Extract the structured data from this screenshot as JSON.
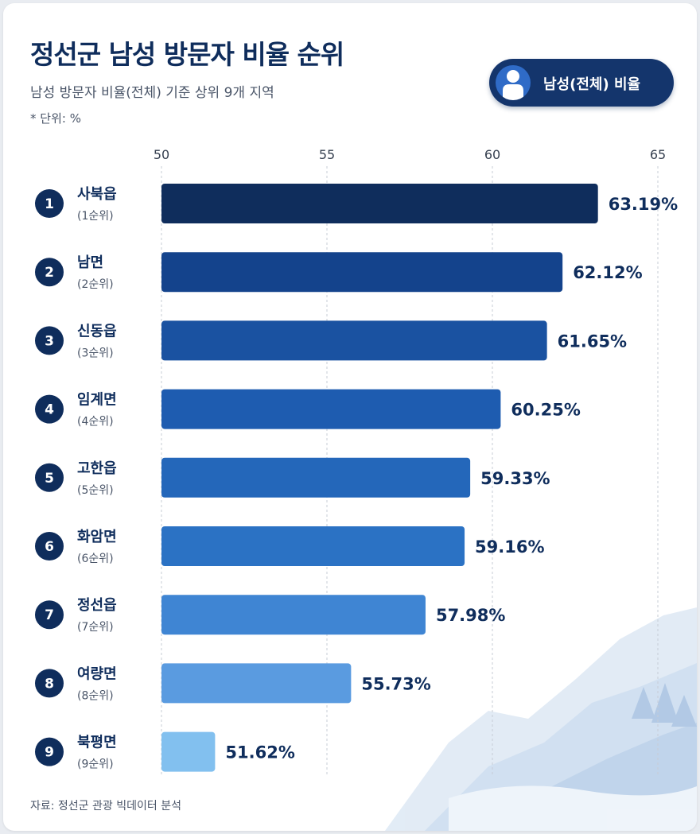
{
  "header": {
    "title": "정선군 남성 방문자 비율 순위",
    "subtitle": "남성 방문자 비율(전체) 기준 상위 9개 지역",
    "unit_note": "* 단위: %"
  },
  "badge": {
    "label": "남성(전체) 비율",
    "icon": "person-icon"
  },
  "footer": {
    "source": "자료: 정선군 관광 빅데이터 분석"
  },
  "chart_data": {
    "type": "bar",
    "orientation": "horizontal",
    "title": "정선군 남성 방문자 비율 순위",
    "subtitle": "남성 방문자 비율(전체) 기준 상위 9개 지역",
    "xlim": [
      50,
      65
    ],
    "ticks": [
      50,
      55,
      60,
      65
    ],
    "grid": true,
    "value_suffix": "%",
    "categories": [
      "사북읍",
      "남면",
      "신동읍",
      "임계면",
      "고한읍",
      "화암면",
      "정선읍",
      "여량면",
      "북평면"
    ],
    "rank_labels": [
      "(1순위)",
      "(2순위)",
      "(3순위)",
      "(4순위)",
      "(5순위)",
      "(6순위)",
      "(7순위)",
      "(8순위)",
      "(9순위)"
    ],
    "values": [
      63.19,
      62.12,
      61.65,
      60.25,
      59.33,
      59.16,
      57.98,
      55.73,
      51.62
    ],
    "colors": [
      "#0f2d5c",
      "#14438c",
      "#1a52a1",
      "#1e5cb0",
      "#2467ba",
      "#2b72c4",
      "#3f85d3",
      "#5a9be0",
      "#82c0ef"
    ],
    "label_color": "#0f2d5c"
  }
}
